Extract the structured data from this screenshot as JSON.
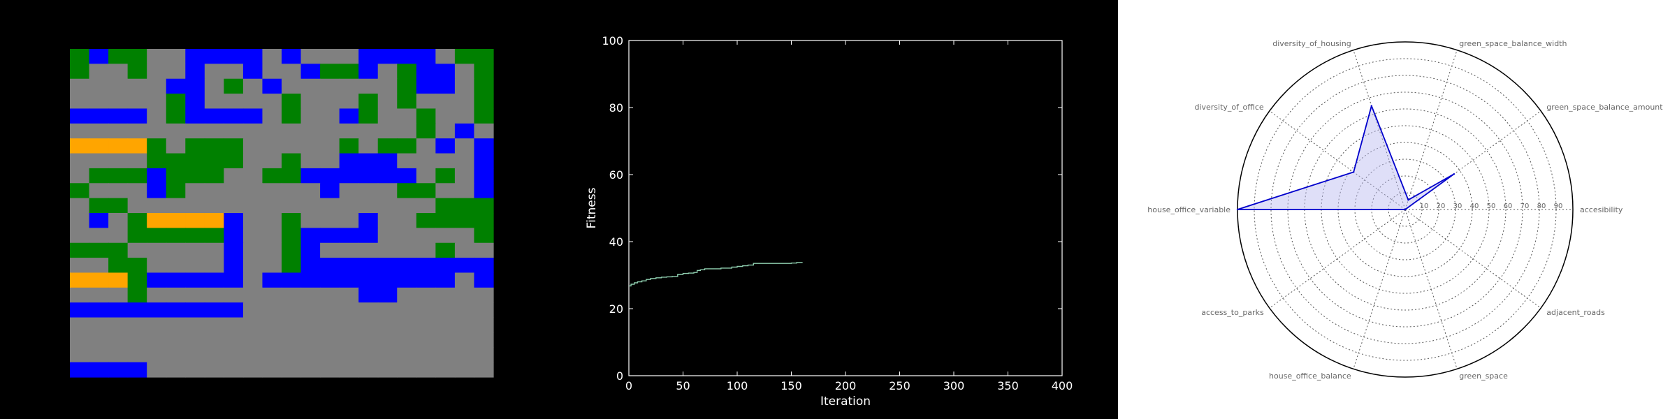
{
  "colors": {
    "background": "#000000",
    "grid_blue": "#0000ff",
    "grid_green": "#008000",
    "grid_orange": "#ffa500",
    "grid_gray": "#808080",
    "fitness_line": "#8fcfb0",
    "radar_line": "#0000cc",
    "radar_fill": "#b8b8f0"
  },
  "grid_map": {
    "legend": "B=blue, G=green, O=orange, R=road (gray)",
    "rows": [
      "GBGGRRBBBBRBRRRBBBBRGG",
      "GRRGRRBRRBRRBGGBRGBBRG",
      "RRRRRBBRGRBRRRRRRGBBRG",
      "RRRRRGBRRRRGRRRGRGRRRG",
      "BBBBRGBBBBRGRRBGRRGRRG",
      "RRRRRRRRRRRRRRRRRRGRBR",
      "OOOOGRGGGRRRRRGRGGRBRB",
      "RRRRGGGGGRRGRRBBBRRRRB",
      "RGGGBGGGRRGGBBBBBBRGRB",
      "GRRRBGRRRRRRRBRRRGGRRB",
      "RGGRRRRRRRRRRRRRRRRGGG",
      "RBRGOOOOBRRGRRRBRRGGGG",
      "RRRGGGGGBRRGBBBBRRRRRG",
      "GGGRRRRRBRRGBRRRRRRGRR",
      "RRGGRRRRBRRGBBBBBBBBBB",
      "OOOGBBBBBRBBBBBBBBBBRB",
      "RRRGRRRRRRRRRRRBBRRRRR",
      "BBBBBBBBBRRRRRRRRRRRRR",
      "RRRRRRRRRRRRRRRRRRRRRR",
      "RRRRRRRRRRRRRRRRRRRRRR",
      "RRRRRRRRRRRRRRRRRRRRRR",
      "BBBBRRRRRRRRRRRRRRRRRR"
    ]
  },
  "chart_data": [
    {
      "type": "line",
      "xlabel": "Iteration",
      "ylabel": "Fitness",
      "xlim": [
        0,
        400
      ],
      "ylim": [
        0,
        100
      ],
      "xticks": [
        "0",
        "50",
        "100",
        "150",
        "200",
        "250",
        "300",
        "350",
        "400"
      ],
      "yticks": [
        "0",
        "20",
        "40",
        "60",
        "80",
        "100"
      ],
      "grid": false,
      "series": [
        {
          "x": [
            0,
            2,
            5,
            8,
            12,
            16,
            20,
            25,
            30,
            35,
            40,
            45,
            50,
            55,
            60,
            63,
            66,
            70,
            75,
            80,
            85,
            90,
            95,
            100,
            105,
            110,
            115,
            120,
            130,
            140,
            150,
            155,
            160
          ],
          "y": [
            26.8,
            27.3,
            27.7,
            28.0,
            28.3,
            28.7,
            29.0,
            29.2,
            29.4,
            29.5,
            29.6,
            30.2,
            30.5,
            30.6,
            30.8,
            31.4,
            31.6,
            31.9,
            31.9,
            31.9,
            32.1,
            32.1,
            32.4,
            32.6,
            32.8,
            33.0,
            33.5,
            33.5,
            33.5,
            33.5,
            33.6,
            33.8,
            33.9
          ]
        }
      ]
    },
    {
      "type": "radar",
      "rgrid": [
        "10",
        "20",
        "30",
        "40",
        "50",
        "60",
        "70",
        "80",
        "90"
      ],
      "rmax": 100,
      "grid": true,
      "categories": [
        "accesibility",
        "green_space_balance_amount",
        "green_space_balance_width",
        "diversity_of_housing",
        "diversity_of_office",
        "house_office_variable",
        "access_to_parks",
        "house_office_balance",
        "green_space",
        "adjacent_roads"
      ],
      "series": [
        {
          "values": [
            0,
            36,
            6,
            65,
            38,
            100,
            0,
            0,
            0,
            0
          ]
        }
      ]
    }
  ]
}
